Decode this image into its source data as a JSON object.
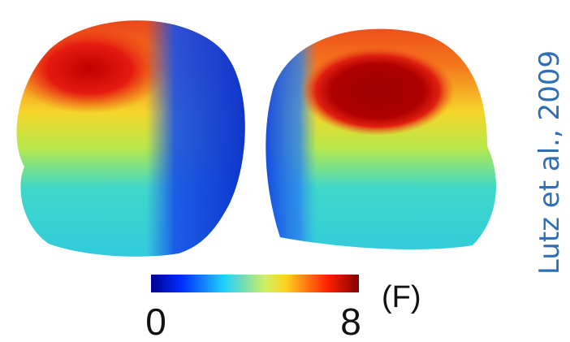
{
  "colorbar": {
    "min_label": "0",
    "max_label": "8",
    "unit": "(F)"
  },
  "citation": "Lutz et al., 2009"
}
